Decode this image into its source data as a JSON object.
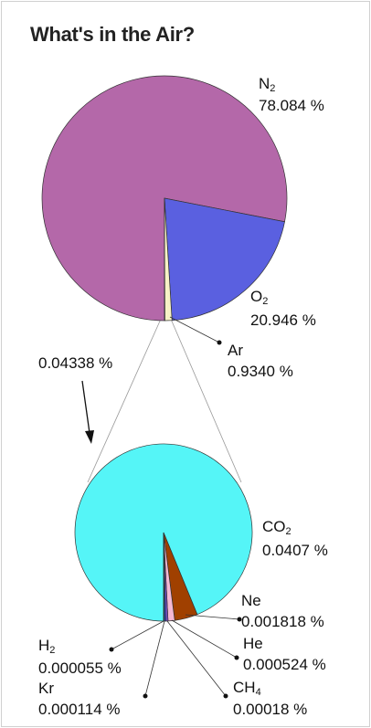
{
  "title": "What's in the Air?",
  "chart_data": [
    {
      "type": "pie",
      "name": "main",
      "slices": [
        {
          "key": "n2",
          "symbol": "N",
          "sub": "2",
          "value": 78.084,
          "display": "78.084 %",
          "color": "#b468a9"
        },
        {
          "key": "o2",
          "symbol": "O",
          "sub": "2",
          "value": 20.946,
          "display": "20.946 %",
          "color": "#5a60e0"
        },
        {
          "key": "ar",
          "symbol": "Ar",
          "sub": "",
          "value": 0.934,
          "display": "0.9340 %",
          "color": "#f7f2c6"
        },
        {
          "key": "rest",
          "symbol": "",
          "sub": "",
          "value": 0.04338,
          "display": "0.04338 %",
          "color": "#b468a9"
        }
      ]
    },
    {
      "type": "pie",
      "name": "detail",
      "total_display": "0.04338 %",
      "slices": [
        {
          "key": "co2",
          "symbol": "CO",
          "sub": "2",
          "value": 0.0407,
          "display": "0.0407 %",
          "color": "#55f5f7"
        },
        {
          "key": "ne",
          "symbol": "Ne",
          "sub": "",
          "value": 0.001818,
          "display": "0.001818 %",
          "color": "#a04000"
        },
        {
          "key": "he",
          "symbol": "He",
          "sub": "",
          "value": 0.000524,
          "display": "0.000524 %",
          "color": "#f5b8d4"
        },
        {
          "key": "ch4",
          "symbol": "CH",
          "sub": "4",
          "value": 0.00018,
          "display": "0.00018 %",
          "color": "#7a4fd0"
        },
        {
          "key": "kr",
          "symbol": "Kr",
          "sub": "",
          "value": 0.000114,
          "display": "0.000114 %",
          "color": "#2050e0"
        },
        {
          "key": "h2",
          "symbol": "H",
          "sub": "2",
          "value": 5.5e-05,
          "display": "0.000055 %",
          "color": "#40c040"
        }
      ]
    }
  ]
}
